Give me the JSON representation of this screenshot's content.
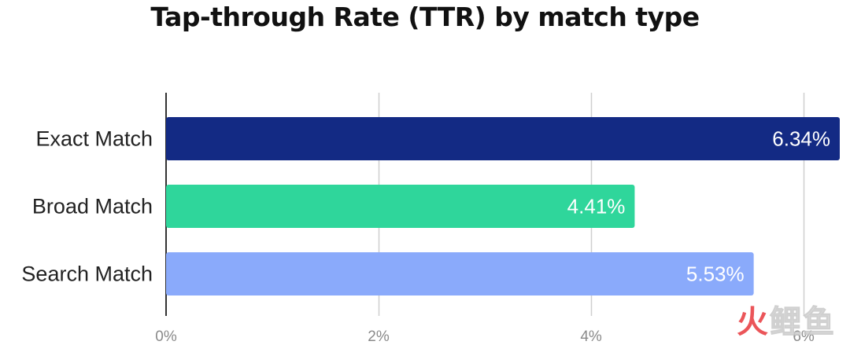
{
  "chart_data": {
    "type": "bar",
    "orientation": "horizontal",
    "title": "Tap-through Rate (TTR) by match type",
    "categories": [
      "Exact  Match",
      "Broad  Match",
      "Search Match"
    ],
    "values": [
      6.34,
      4.41,
      5.53
    ],
    "value_labels": [
      "6.34%",
      "4.41%",
      "5.53%"
    ],
    "bar_colors": [
      "#132a84",
      "#2fd69b",
      "#8aaafb"
    ],
    "xlim": [
      0,
      6.34
    ],
    "xticks": [
      0,
      2,
      4,
      6
    ],
    "xtick_labels": [
      "0%",
      "2%",
      "4%",
      "6%"
    ],
    "grid": "vertical",
    "legend": "none"
  },
  "watermark": {
    "text_a": "火",
    "text_b": "鲤鱼"
  }
}
